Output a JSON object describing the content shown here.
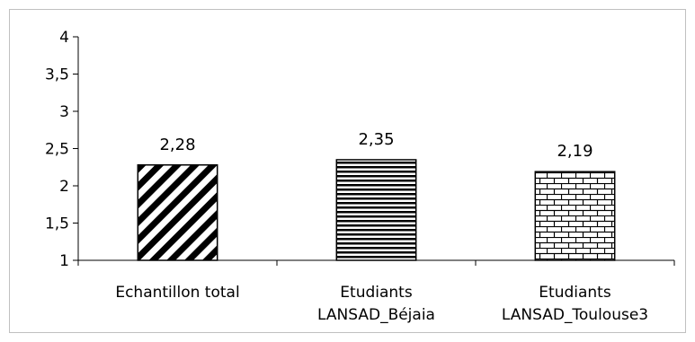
{
  "chart_data": {
    "type": "bar",
    "title": "",
    "xlabel": "",
    "ylabel": "",
    "ylim": [
      1,
      4
    ],
    "yticks": [
      1,
      1.5,
      2,
      2.5,
      3,
      3.5,
      4
    ],
    "ytick_labels": [
      "1",
      "1,5",
      "2",
      "2,5",
      "3",
      "3,5",
      "4"
    ],
    "categories": [
      [
        "Echantillon total"
      ],
      [
        "Etudiants",
        "LANSAD_Béjaia"
      ],
      [
        "Etudiants",
        "LANSAD_Toulouse3"
      ]
    ],
    "values": [
      2.28,
      2.35,
      2.19
    ],
    "value_labels": [
      "2,28",
      "2,35",
      "2,19"
    ],
    "bar_patterns": [
      "diagonal-stripes",
      "horizontal-stripes",
      "bricks"
    ],
    "grid": false,
    "legend": "none",
    "colors": {
      "bar_ink": "#000000",
      "bar_fill": "#ffffff",
      "axis": "#000000",
      "frame": "#c0c0c0"
    }
  }
}
